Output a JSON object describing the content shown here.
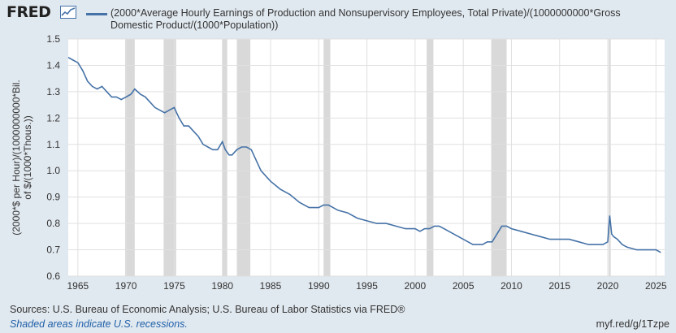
{
  "header": {
    "logo_text": "FRED",
    "logo_icon": "chart-line-icon",
    "legend_label": "(2000*Average Hourly Earnings of Production and Nonsupervisory Employees, Total Private)/(1000000000*Gross Domestic Product/(1000*Population))"
  },
  "colors": {
    "series": "#4572a7",
    "recession": "#d9d9d9",
    "background": "#e1e9f0",
    "plot": "#ffffff",
    "grid": "#e0e0e0"
  },
  "footer": {
    "sources": "Sources: U.S. Bureau of Economic Analysis; U.S. Bureau of Labor Statistics via FRED®",
    "note": "Shaded areas indicate U.S. recessions.",
    "link": "myf.red/g/1Tzpe"
  },
  "chart_data": {
    "type": "line",
    "title": "",
    "xlabel": "",
    "ylabel": "(2000*$ per Hour)/(1000000000*Bil. of $/(1000*Thous.))",
    "xlim": [
      1964.0,
      2025.9
    ],
    "ylim": [
      0.6,
      1.5
    ],
    "xticks": [
      1965,
      1970,
      1975,
      1980,
      1985,
      1990,
      1995,
      2000,
      2005,
      2010,
      2015,
      2020,
      2025
    ],
    "yticks": [
      "0.6",
      "0.7",
      "0.8",
      "0.9",
      "1.0",
      "1.1",
      "1.2",
      "1.3",
      "1.4",
      "1.5"
    ],
    "grid": true,
    "legend": "top",
    "recessions": [
      [
        1969.9,
        1970.9
      ],
      [
        1973.9,
        1975.2
      ],
      [
        1980.0,
        1980.5
      ],
      [
        1981.5,
        1982.9
      ],
      [
        1990.5,
        1991.2
      ],
      [
        2001.2,
        2001.9
      ],
      [
        2007.9,
        2009.5
      ],
      [
        2020.1,
        2020.3
      ]
    ],
    "series": [
      {
        "name": "(2000*Average Hourly Earnings of Production and Nonsupervisory Employees, Total Private)/(1000000000*Gross Domestic Product/(1000*Population))",
        "x": [
          1964.0,
          1964.5,
          1965.0,
          1965.5,
          1966.0,
          1966.5,
          1967.0,
          1967.5,
          1968.0,
          1968.5,
          1969.0,
          1969.5,
          1970.0,
          1970.5,
          1970.9,
          1971.5,
          1972.0,
          1972.5,
          1973.0,
          1973.5,
          1974.0,
          1974.5,
          1975.0,
          1975.5,
          1976.0,
          1976.5,
          1977.0,
          1977.5,
          1978.0,
          1978.5,
          1979.0,
          1979.5,
          1980.0,
          1980.3,
          1980.7,
          1981.0,
          1981.5,
          1982.0,
          1982.5,
          1983.0,
          1983.5,
          1984.0,
          1985.0,
          1986.0,
          1987.0,
          1988.0,
          1989.0,
          1990.0,
          1990.5,
          1991.0,
          1992.0,
          1993.0,
          1994.0,
          1995.0,
          1996.0,
          1997.0,
          1998.0,
          1999.0,
          2000.0,
          2000.5,
          2001.0,
          2001.5,
          2002.0,
          2002.5,
          2003.0,
          2004.0,
          2005.0,
          2006.0,
          2007.0,
          2007.5,
          2008.0,
          2008.5,
          2009.0,
          2009.5,
          2010.0,
          2011.0,
          2012.0,
          2013.0,
          2014.0,
          2015.0,
          2016.0,
          2017.0,
          2018.0,
          2019.0,
          2019.5,
          2020.0,
          2020.2,
          2020.4,
          2020.6,
          2021.0,
          2021.5,
          2022.0,
          2023.0,
          2024.0,
          2025.0,
          2025.5
        ],
        "values": [
          1.43,
          1.42,
          1.41,
          1.38,
          1.34,
          1.32,
          1.31,
          1.32,
          1.3,
          1.28,
          1.28,
          1.27,
          1.28,
          1.29,
          1.31,
          1.29,
          1.28,
          1.26,
          1.24,
          1.23,
          1.22,
          1.23,
          1.24,
          1.2,
          1.17,
          1.17,
          1.15,
          1.13,
          1.1,
          1.09,
          1.08,
          1.08,
          1.11,
          1.08,
          1.06,
          1.06,
          1.08,
          1.09,
          1.09,
          1.08,
          1.04,
          1.0,
          0.96,
          0.93,
          0.91,
          0.88,
          0.86,
          0.86,
          0.87,
          0.87,
          0.85,
          0.84,
          0.82,
          0.81,
          0.8,
          0.8,
          0.79,
          0.78,
          0.78,
          0.77,
          0.78,
          0.78,
          0.79,
          0.79,
          0.78,
          0.76,
          0.74,
          0.72,
          0.72,
          0.73,
          0.73,
          0.76,
          0.79,
          0.79,
          0.78,
          0.77,
          0.76,
          0.75,
          0.74,
          0.74,
          0.74,
          0.73,
          0.72,
          0.72,
          0.72,
          0.73,
          0.83,
          0.76,
          0.75,
          0.74,
          0.72,
          0.71,
          0.7,
          0.7,
          0.7,
          0.69
        ]
      }
    ]
  }
}
